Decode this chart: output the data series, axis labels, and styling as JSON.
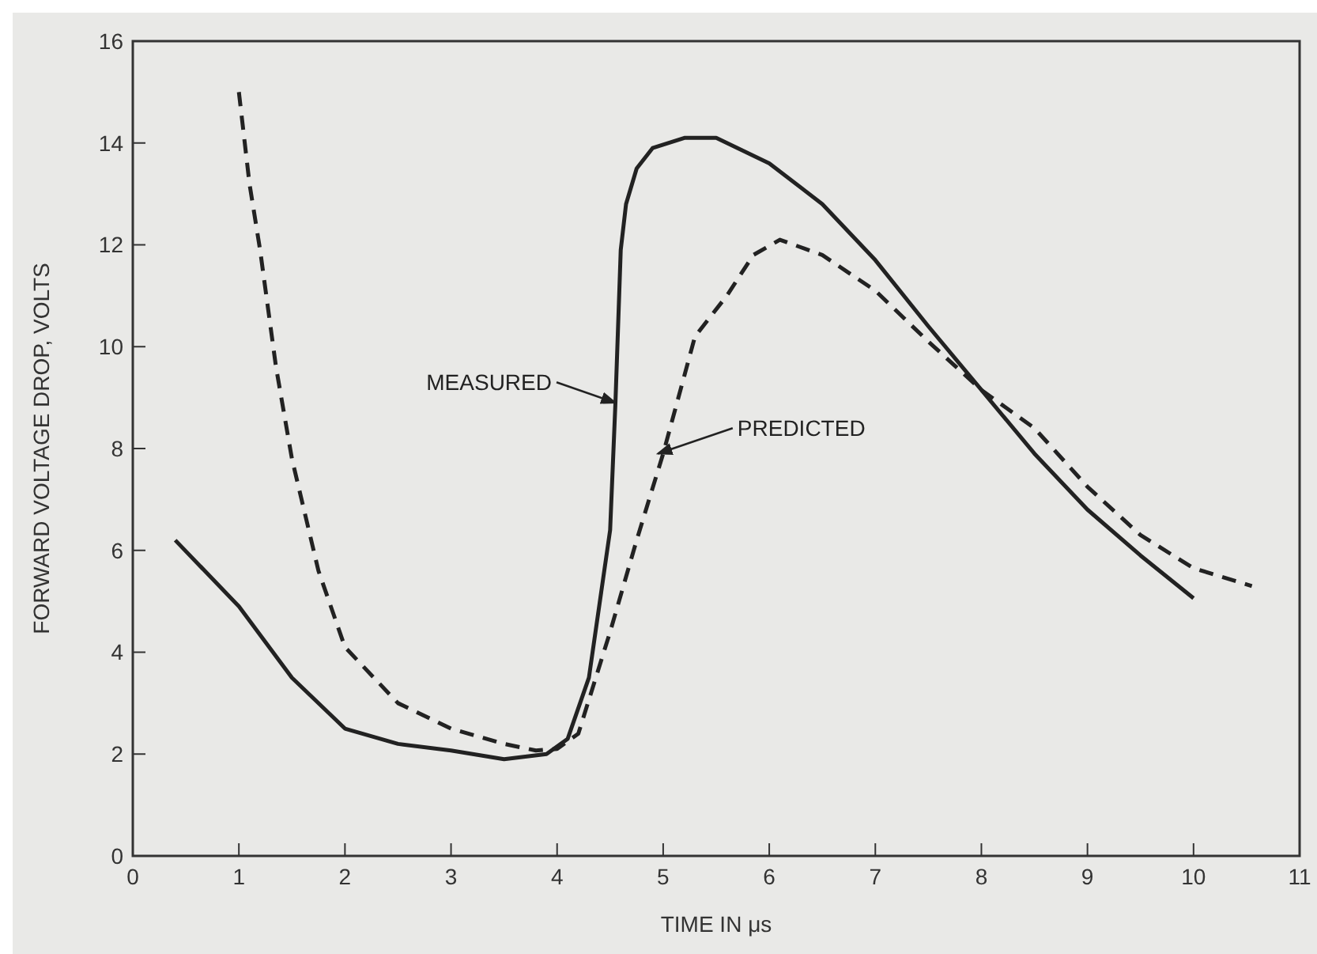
{
  "chart_data": {
    "type": "line",
    "xlabel": "TIME IN μs",
    "ylabel": "FORWARD VOLTAGE DROP, VOLTS",
    "xlim": [
      0,
      11
    ],
    "xticks": [
      0,
      1,
      2,
      3,
      4,
      5,
      6,
      7,
      8,
      9,
      10,
      11
    ],
    "ylim": [
      0,
      16
    ],
    "yticks": [
      0,
      2,
      4,
      6,
      8,
      10,
      12,
      14,
      16
    ],
    "grid": false,
    "legend": false,
    "marker": "none",
    "series": [
      {
        "color": "#222222",
        "line_style": "solid",
        "x": [
          0.4,
          1,
          1.5,
          2,
          2.5,
          3,
          3.5,
          3.9,
          4.1,
          4.3,
          4.5,
          4.55,
          4.6,
          4.65,
          4.75,
          4.9,
          5.2,
          5.5,
          6,
          6.5,
          7,
          7.5,
          8,
          8.5,
          9,
          9.5,
          10
        ],
        "values": [
          6.2,
          4.9,
          3.5,
          2.5,
          2.2,
          2.07,
          1.9,
          2.0,
          2.3,
          3.5,
          6.4,
          8.9,
          11.9,
          12.8,
          13.5,
          13.9,
          14.1,
          14.1,
          13.6,
          12.8,
          11.7,
          10.4,
          9.15,
          7.9,
          6.8,
          5.9,
          5.06
        ]
      },
      {
        "color": "#222222",
        "line_style": "dashed",
        "x": [
          1,
          1.1,
          1.2,
          1.35,
          1.5,
          1.75,
          2,
          2.5,
          3,
          3.5,
          3.8,
          4,
          4.2,
          4.5,
          4.75,
          5,
          5.3,
          5.6,
          5.85,
          6.1,
          6.5,
          7,
          7.5,
          8,
          8.5,
          9,
          9.5,
          10,
          10.55
        ],
        "values": [
          15.0,
          13.2,
          11.9,
          9.6,
          7.8,
          5.6,
          4.1,
          3.0,
          2.5,
          2.2,
          2.07,
          2.1,
          2.4,
          4.4,
          6.2,
          7.9,
          10.2,
          11.0,
          11.8,
          12.1,
          11.8,
          11.1,
          10.1,
          9.15,
          8.4,
          7.25,
          6.3,
          5.65,
          5.3
        ]
      }
    ],
    "annotations": [
      {
        "text": "MEASURED",
        "x": 4.55,
        "y": 8.9
      },
      {
        "text": "PREDICTED",
        "x": 4.95,
        "y": 7.9
      }
    ]
  }
}
